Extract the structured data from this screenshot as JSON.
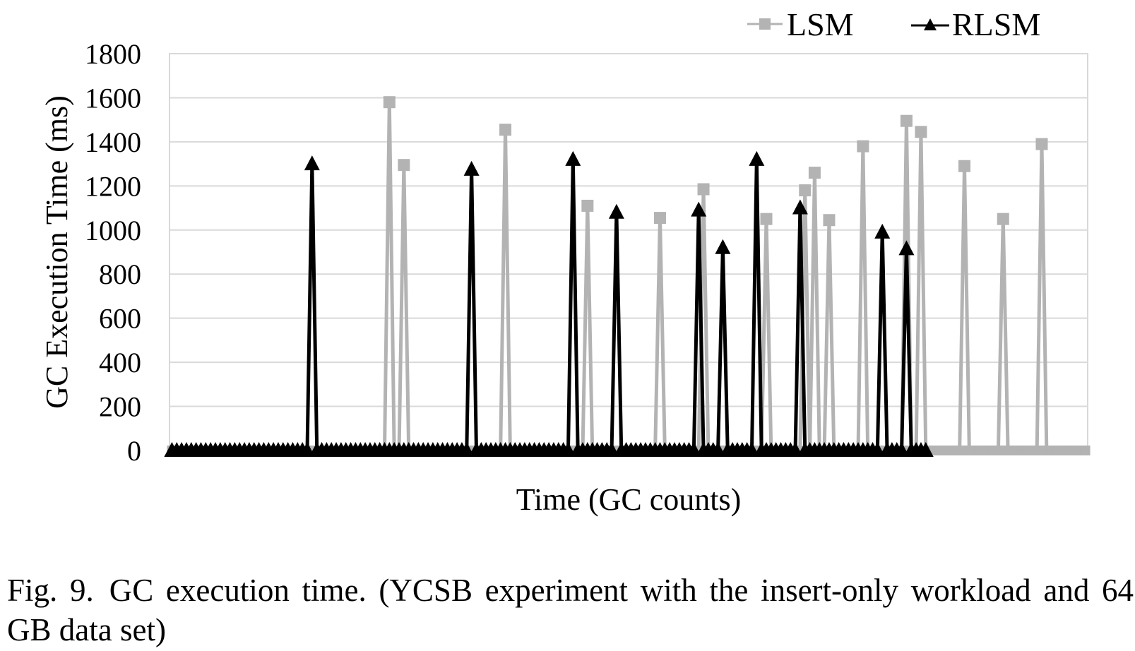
{
  "caption": {
    "prefix": "Fig. 9.",
    "text": "GC execution time. (YCSB experiment with the insert-only workload and 64 GB data set)"
  },
  "chart_data": {
    "type": "line",
    "xlabel": "Time (GC counts)",
    "ylabel": "GC Execution Time (ms)",
    "ylim": [
      0,
      1800
    ],
    "yticks": [
      "0",
      "200",
      "400",
      "600",
      "800",
      "1000",
      "1200",
      "1400",
      "1600",
      "1800"
    ],
    "grid": true,
    "legend_position": "top-right",
    "x_count": 190,
    "series": [
      {
        "name": "LSM",
        "color": "#b3b3b3",
        "marker": "square",
        "length": 190,
        "spikes": [
          {
            "x": 45,
            "y": 1580
          },
          {
            "x": 48,
            "y": 1295
          },
          {
            "x": 69,
            "y": 1455
          },
          {
            "x": 86,
            "y": 1110
          },
          {
            "x": 101,
            "y": 1055
          },
          {
            "x": 110,
            "y": 1185
          },
          {
            "x": 123,
            "y": 1050
          },
          {
            "x": 131,
            "y": 1180
          },
          {
            "x": 133,
            "y": 1260
          },
          {
            "x": 136,
            "y": 1045
          },
          {
            "x": 143,
            "y": 1380
          },
          {
            "x": 152,
            "y": 1495
          },
          {
            "x": 155,
            "y": 1445
          },
          {
            "x": 164,
            "y": 1290
          },
          {
            "x": 172,
            "y": 1050
          },
          {
            "x": 180,
            "y": 1390
          }
        ]
      },
      {
        "name": "RLSM",
        "color": "#000000",
        "marker": "triangle",
        "length": 157,
        "spikes": [
          {
            "x": 29,
            "y": 1300
          },
          {
            "x": 62,
            "y": 1275
          },
          {
            "x": 83,
            "y": 1320
          },
          {
            "x": 92,
            "y": 1080
          },
          {
            "x": 109,
            "y": 1090
          },
          {
            "x": 114,
            "y": 920
          },
          {
            "x": 121,
            "y": 1320
          },
          {
            "x": 130,
            "y": 1100
          },
          {
            "x": 147,
            "y": 990
          },
          {
            "x": 152,
            "y": 915
          }
        ]
      }
    ]
  }
}
